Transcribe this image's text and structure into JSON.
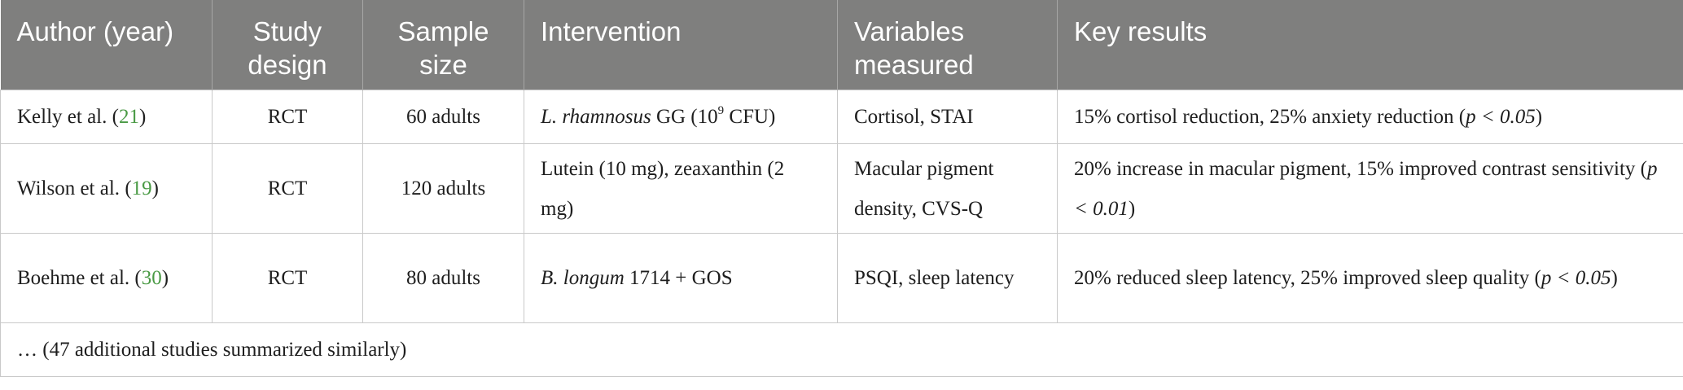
{
  "columns": [
    "Author (year)",
    "Study design",
    "Sample size",
    "Intervention",
    "Variables measured",
    "Key results"
  ],
  "rows": [
    {
      "author": "Kelly et al.",
      "ref": "21",
      "design": "RCT",
      "sample": "60 adults",
      "intervention": {
        "italic": "L. rhamnosus",
        "text": " GG (10",
        "sup": "9",
        "tail": " CFU)"
      },
      "variables": "Cortisol, STAI",
      "results": {
        "text": "15% cortisol reduction, 25% anxiety reduction (",
        "p": "p < 0.05",
        "close": ")"
      }
    },
    {
      "author": "Wilson et al.",
      "ref": "19",
      "design": "RCT",
      "sample": "120 adults",
      "intervention": {
        "text": "Lutein (10 mg), zeaxanthin (2 mg)"
      },
      "variables": "Macular pigment density, CVS-Q",
      "results": {
        "text": "20% increase in macular pigment, 15% improved contrast sensitivity (",
        "p": "p < 0.01",
        "close": ")"
      }
    },
    {
      "author": "Boehme et al.",
      "ref": "30",
      "design": "RCT",
      "sample": "80 adults",
      "intervention": {
        "italic": "B. longum",
        "text": " 1714 + GOS"
      },
      "variables": "PSQI, sleep latency",
      "results": {
        "text": "20% reduced sleep latency, 25% improved sleep quality (",
        "p": "p < 0.05",
        "close": ")"
      }
    }
  ],
  "footer": "… (47 additional studies summarized similarly)"
}
